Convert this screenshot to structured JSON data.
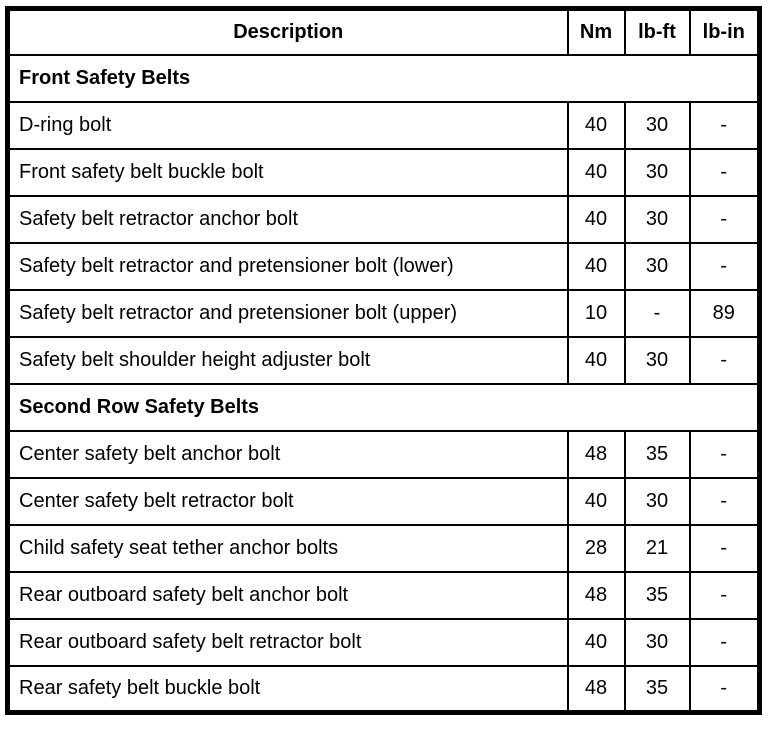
{
  "table": {
    "headers": [
      "Description",
      "Nm",
      "lb-ft",
      "lb-in"
    ],
    "sections": [
      {
        "title": "Front Safety Belts",
        "rows": [
          {
            "description": "D-ring bolt",
            "nm": "40",
            "lbft": "30",
            "lbin": "-"
          },
          {
            "description": "Front safety belt buckle bolt",
            "nm": "40",
            "lbft": "30",
            "lbin": "-"
          },
          {
            "description": "Safety belt retractor anchor bolt",
            "nm": "40",
            "lbft": "30",
            "lbin": "-"
          },
          {
            "description": "Safety belt retractor and pretensioner bolt (lower)",
            "nm": "40",
            "lbft": "30",
            "lbin": "-"
          },
          {
            "description": "Safety belt retractor and pretensioner bolt (upper)",
            "nm": "10",
            "lbft": "-",
            "lbin": "89"
          },
          {
            "description": "Safety belt shoulder height adjuster bolt",
            "nm": "40",
            "lbft": "30",
            "lbin": "-"
          }
        ]
      },
      {
        "title": "Second Row Safety Belts",
        "rows": [
          {
            "description": "Center safety belt anchor bolt",
            "nm": "48",
            "lbft": "35",
            "lbin": "-"
          },
          {
            "description": "Center safety belt retractor bolt",
            "nm": "40",
            "lbft": "30",
            "lbin": "-"
          },
          {
            "description": "Child safety seat tether anchor bolts",
            "nm": "28",
            "lbft": "21",
            "lbin": "-"
          },
          {
            "description": "Rear outboard safety belt anchor bolt",
            "nm": "48",
            "lbft": "35",
            "lbin": "-"
          },
          {
            "description": "Rear outboard safety belt retractor bolt",
            "nm": "40",
            "lbft": "30",
            "lbin": "-"
          },
          {
            "description": "Rear safety belt buckle bolt",
            "nm": "48",
            "lbft": "35",
            "lbin": "-"
          }
        ]
      }
    ],
    "colors": {
      "border": "#000000",
      "text": "#000000",
      "background": "#ffffff"
    }
  }
}
